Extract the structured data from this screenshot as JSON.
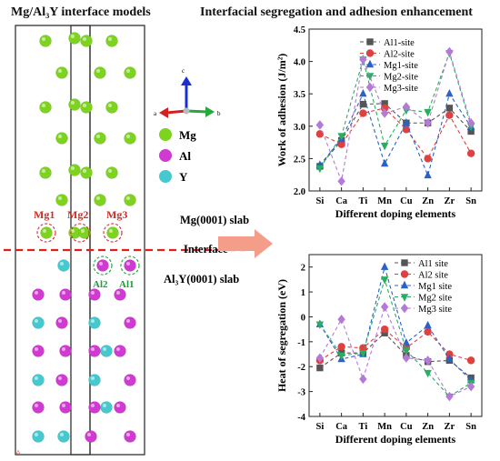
{
  "left_title": "Mg/Al₃Y interface models",
  "right_title": "Interfacial segregation and adhesion enhancement",
  "axes_labels": {
    "a": "a",
    "b": "b",
    "c": "c"
  },
  "atom_legend": [
    {
      "symbol": "Mg",
      "color": "#7ed321"
    },
    {
      "symbol": "Al",
      "color": "#d03ad0"
    },
    {
      "symbol": "Y",
      "color": "#45c9cf"
    }
  ],
  "site_labels": {
    "mg1": "Mg1",
    "mg2": "Mg2",
    "mg3": "Mg3",
    "al2": "Al2",
    "al1": "Al1"
  },
  "slab_top": "Mg(0001) slab",
  "interface": "Interface",
  "slab_bottom": "Al₃Y(0001) slab",
  "colors": {
    "mg": "#7ed321",
    "al": "#d03ad0",
    "y": "#45c9cf",
    "interface": "#e0201b",
    "site_mg": "#d32a26",
    "site_al": "#1a9e3b",
    "arrow": "#f49e89"
  },
  "chart_data": [
    {
      "type": "line",
      "title": "",
      "xlabel": "Different doping elements",
      "ylabel": "Work of adhesion (J/m²)",
      "ylim": [
        2.0,
        4.5
      ],
      "yticks": [
        "2.0",
        "2.5",
        "3.0",
        "3.5",
        "4.0",
        "4.5"
      ],
      "categories": [
        "Si",
        "Ca",
        "Ti",
        "Mn",
        "Cu",
        "Zn",
        "Zr",
        "Sn"
      ],
      "legend_position": "top-left",
      "series": [
        {
          "name": "Al1-site",
          "color": "#555555",
          "marker": "square",
          "values": [
            2.38,
            2.78,
            3.34,
            3.35,
            3.05,
            3.05,
            3.28,
            2.92
          ]
        },
        {
          "name": "Al2-site",
          "color": "#e04040",
          "marker": "circle",
          "values": [
            2.88,
            2.72,
            3.2,
            3.28,
            2.95,
            2.5,
            3.17,
            2.58
          ]
        },
        {
          "name": "Mg1-site",
          "color": "#2a62c8",
          "marker": "triangle-up",
          "values": [
            2.4,
            2.8,
            3.5,
            2.42,
            3.05,
            2.24,
            3.5,
            2.99
          ]
        },
        {
          "name": "Mg2-site",
          "color": "#27ae60",
          "marker": "triangle-down",
          "values": [
            2.35,
            2.85,
            4.03,
            2.7,
            3.25,
            3.22,
            4.13,
            3.0
          ]
        },
        {
          "name": "Mg3-site",
          "color": "#b57ad6",
          "marker": "diamond",
          "values": [
            3.02,
            2.15,
            4.03,
            3.2,
            3.3,
            3.05,
            4.15,
            3.05
          ]
        }
      ]
    },
    {
      "type": "line",
      "title": "",
      "xlabel": "Different doping elements",
      "ylabel": "Heat of segregation (eV)",
      "ylim": [
        -4,
        2.5
      ],
      "yticks": [
        "-4",
        "-3",
        "-2",
        "-1",
        "0",
        "1",
        "2"
      ],
      "categories": [
        "Si",
        "Ca",
        "Ti",
        "Mn",
        "Cu",
        "Zn",
        "Zr",
        "Sn"
      ],
      "legend_position": "top-right",
      "series": [
        {
          "name": "Al1 site",
          "color": "#555555",
          "marker": "square",
          "values": [
            -2.05,
            -1.45,
            -1.45,
            -0.65,
            -1.55,
            -1.8,
            -1.75,
            -2.45
          ]
        },
        {
          "name": "Al2 site",
          "color": "#e04040",
          "marker": "circle",
          "values": [
            -1.75,
            -1.2,
            -1.25,
            -0.5,
            -1.25,
            -0.6,
            -1.5,
            -1.75
          ]
        },
        {
          "name": "Mg1 site",
          "color": "#2a62c8",
          "marker": "triangle-up",
          "values": [
            -0.3,
            -1.7,
            -1.5,
            2.0,
            -1.05,
            -0.35,
            -1.7,
            -2.55
          ]
        },
        {
          "name": "Mg2 site",
          "color": "#27ae60",
          "marker": "triangle-down",
          "values": [
            -0.3,
            -1.55,
            -1.45,
            1.5,
            -1.35,
            -2.25,
            -3.2,
            -2.65
          ]
        },
        {
          "name": "Mg3 site",
          "color": "#b57ad6",
          "marker": "diamond",
          "values": [
            -1.65,
            -0.1,
            -2.5,
            0.4,
            -1.65,
            -1.75,
            -3.2,
            -2.8
          ]
        }
      ]
    }
  ]
}
